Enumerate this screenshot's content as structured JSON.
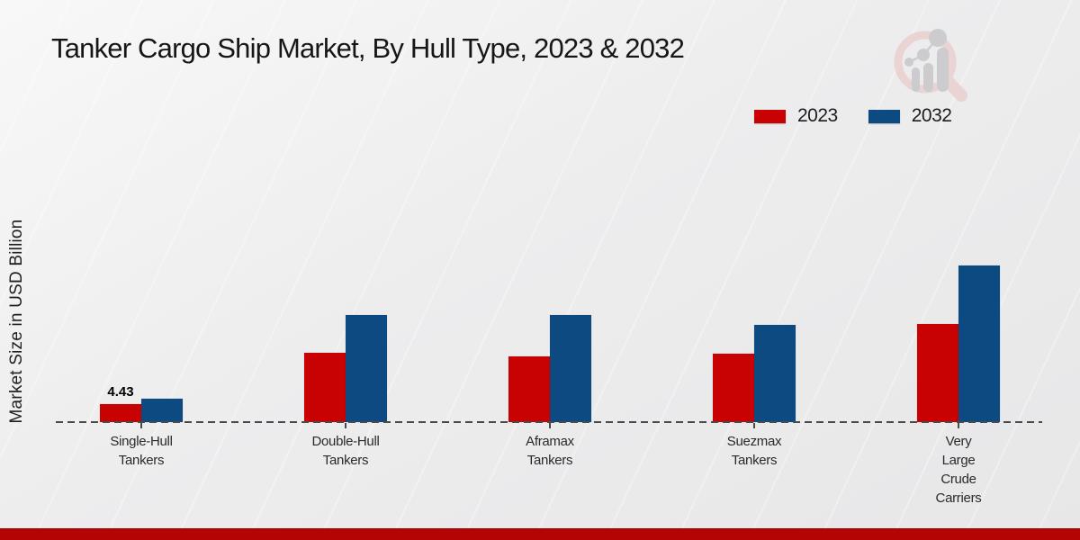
{
  "page": {
    "title": "Tanker Cargo Ship Market, By Hull Type, 2023 & 2032"
  },
  "chart_data": {
    "type": "bar",
    "title": "Tanker Cargo Ship Market, By Hull Type, 2023 & 2032",
    "xlabel": "",
    "ylabel": "Market Size in USD Billion",
    "categories": [
      "Single-Hull\nTankers",
      "Double-Hull\nTankers",
      "Aframax\nTankers",
      "Suezmax\nTankers",
      "Very\nLarge\nCrude\nCarriers"
    ],
    "series": [
      {
        "name": "2023",
        "color": "#c80202",
        "values": [
          4.43,
          17.4,
          16.3,
          17.1,
          24.4
        ]
      },
      {
        "name": "2032",
        "color": "#0d4a82",
        "values": [
          5.9,
          26.8,
          26.8,
          24.2,
          39.0
        ]
      }
    ],
    "annotations": [
      {
        "series": "2023",
        "category_index": 0,
        "text": "4.43"
      }
    ],
    "ylim": [
      0,
      45
    ],
    "grid": false,
    "axis_style": "dashed-baseline",
    "legend_position": "top-right"
  },
  "colors": {
    "series_2023": "#c80202",
    "series_2032": "#0d4a82",
    "footer_band": "#b50404",
    "axis": "#4a4a4a"
  }
}
